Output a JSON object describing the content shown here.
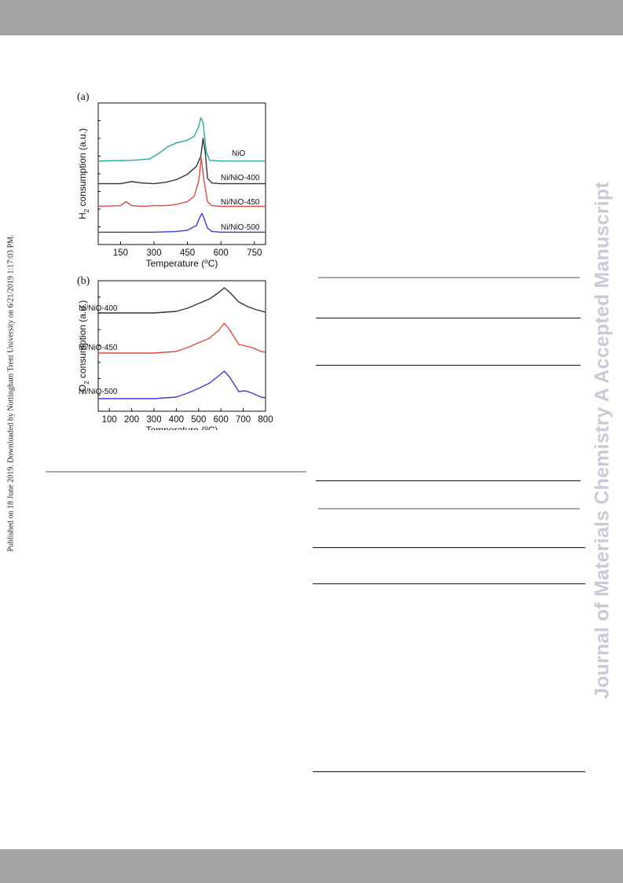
{
  "side_note": "Published on 18 June 2019. Downloaded by Nottingham Trent University on 6/21/2019 1:17:03 PM.",
  "watermark": "Journal of Materials Chemistry A Accepted Manuscript",
  "colors": {
    "band": "#a3a3a3",
    "NiO": "#2fa6a0",
    "Ni/NiO-400": "#333333",
    "Ni/NiO-450": "#e0483d",
    "Ni/NiO-500": "#3b3bd6"
  },
  "chart_data": [
    {
      "panel": "(a)",
      "type": "line",
      "xlabel": "Temperature (°C)",
      "ylabel": "H2 consumption (a.u.)",
      "xlim": [
        50,
        800
      ],
      "xticks": [
        "150",
        "300",
        "450",
        "600",
        "750"
      ],
      "series": [
        {
          "name": "NiO",
          "x": [
            50,
            200,
            280,
            320,
            360,
            400,
            450,
            480,
            500,
            510,
            520,
            535,
            550,
            600,
            800
          ],
          "y": [
            5,
            6,
            8,
            16,
            26,
            32,
            36,
            42,
            56,
            70,
            62,
            18,
            6,
            5,
            5
          ]
        },
        {
          "name": "Ni/NiO-400",
          "x": [
            50,
            150,
            200,
            250,
            300,
            350,
            400,
            450,
            490,
            510,
            520,
            530,
            540,
            560,
            600,
            800
          ],
          "y": [
            4,
            4,
            7,
            5,
            4,
            6,
            10,
            18,
            30,
            45,
            72,
            50,
            12,
            5,
            4,
            4
          ]
        },
        {
          "name": "Ni/NiO-450",
          "x": [
            50,
            150,
            175,
            200,
            250,
            300,
            350,
            400,
            450,
            480,
            500,
            512,
            525,
            540,
            560,
            600,
            800
          ],
          "y": [
            3,
            4,
            10,
            4,
            3,
            4,
            4,
            6,
            10,
            18,
            40,
            75,
            40,
            10,
            4,
            3,
            3
          ]
        },
        {
          "name": "Ni/NiO-500",
          "x": [
            50,
            300,
            400,
            450,
            490,
            505,
            515,
            525,
            540,
            560,
            600,
            800
          ],
          "y": [
            2,
            2,
            3,
            5,
            12,
            24,
            30,
            22,
            8,
            3,
            2,
            2
          ]
        }
      ]
    },
    {
      "panel": "(b)",
      "type": "line",
      "xlabel": "Temperature (°C)",
      "ylabel": "O2 consumption (a.u.)",
      "xlim": [
        50,
        800
      ],
      "xticks": [
        "100",
        "200",
        "300",
        "400",
        "500",
        "600",
        "700",
        "800"
      ],
      "series": [
        {
          "name": "Ni/NiO-400",
          "x": [
            50,
            300,
            400,
            450,
            500,
            550,
            590,
            615,
            640,
            680,
            720,
            760,
            800
          ],
          "y": [
            4,
            4,
            6,
            10,
            16,
            22,
            30,
            36,
            30,
            18,
            12,
            8,
            5
          ]
        },
        {
          "name": "Ni/NiO-450",
          "x": [
            50,
            300,
            400,
            450,
            500,
            550,
            590,
            615,
            640,
            680,
            710,
            740,
            780,
            800
          ],
          "y": [
            3,
            3,
            5,
            10,
            16,
            22,
            32,
            41,
            32,
            14,
            12,
            10,
            5,
            4
          ]
        },
        {
          "name": "Ni/NiO-500",
          "x": [
            50,
            300,
            400,
            450,
            500,
            550,
            590,
            615,
            640,
            680,
            710,
            740,
            780,
            800
          ],
          "y": [
            1,
            1,
            3,
            8,
            14,
            21,
            30,
            36,
            28,
            10,
            11,
            8,
            3,
            2
          ]
        }
      ]
    }
  ]
}
